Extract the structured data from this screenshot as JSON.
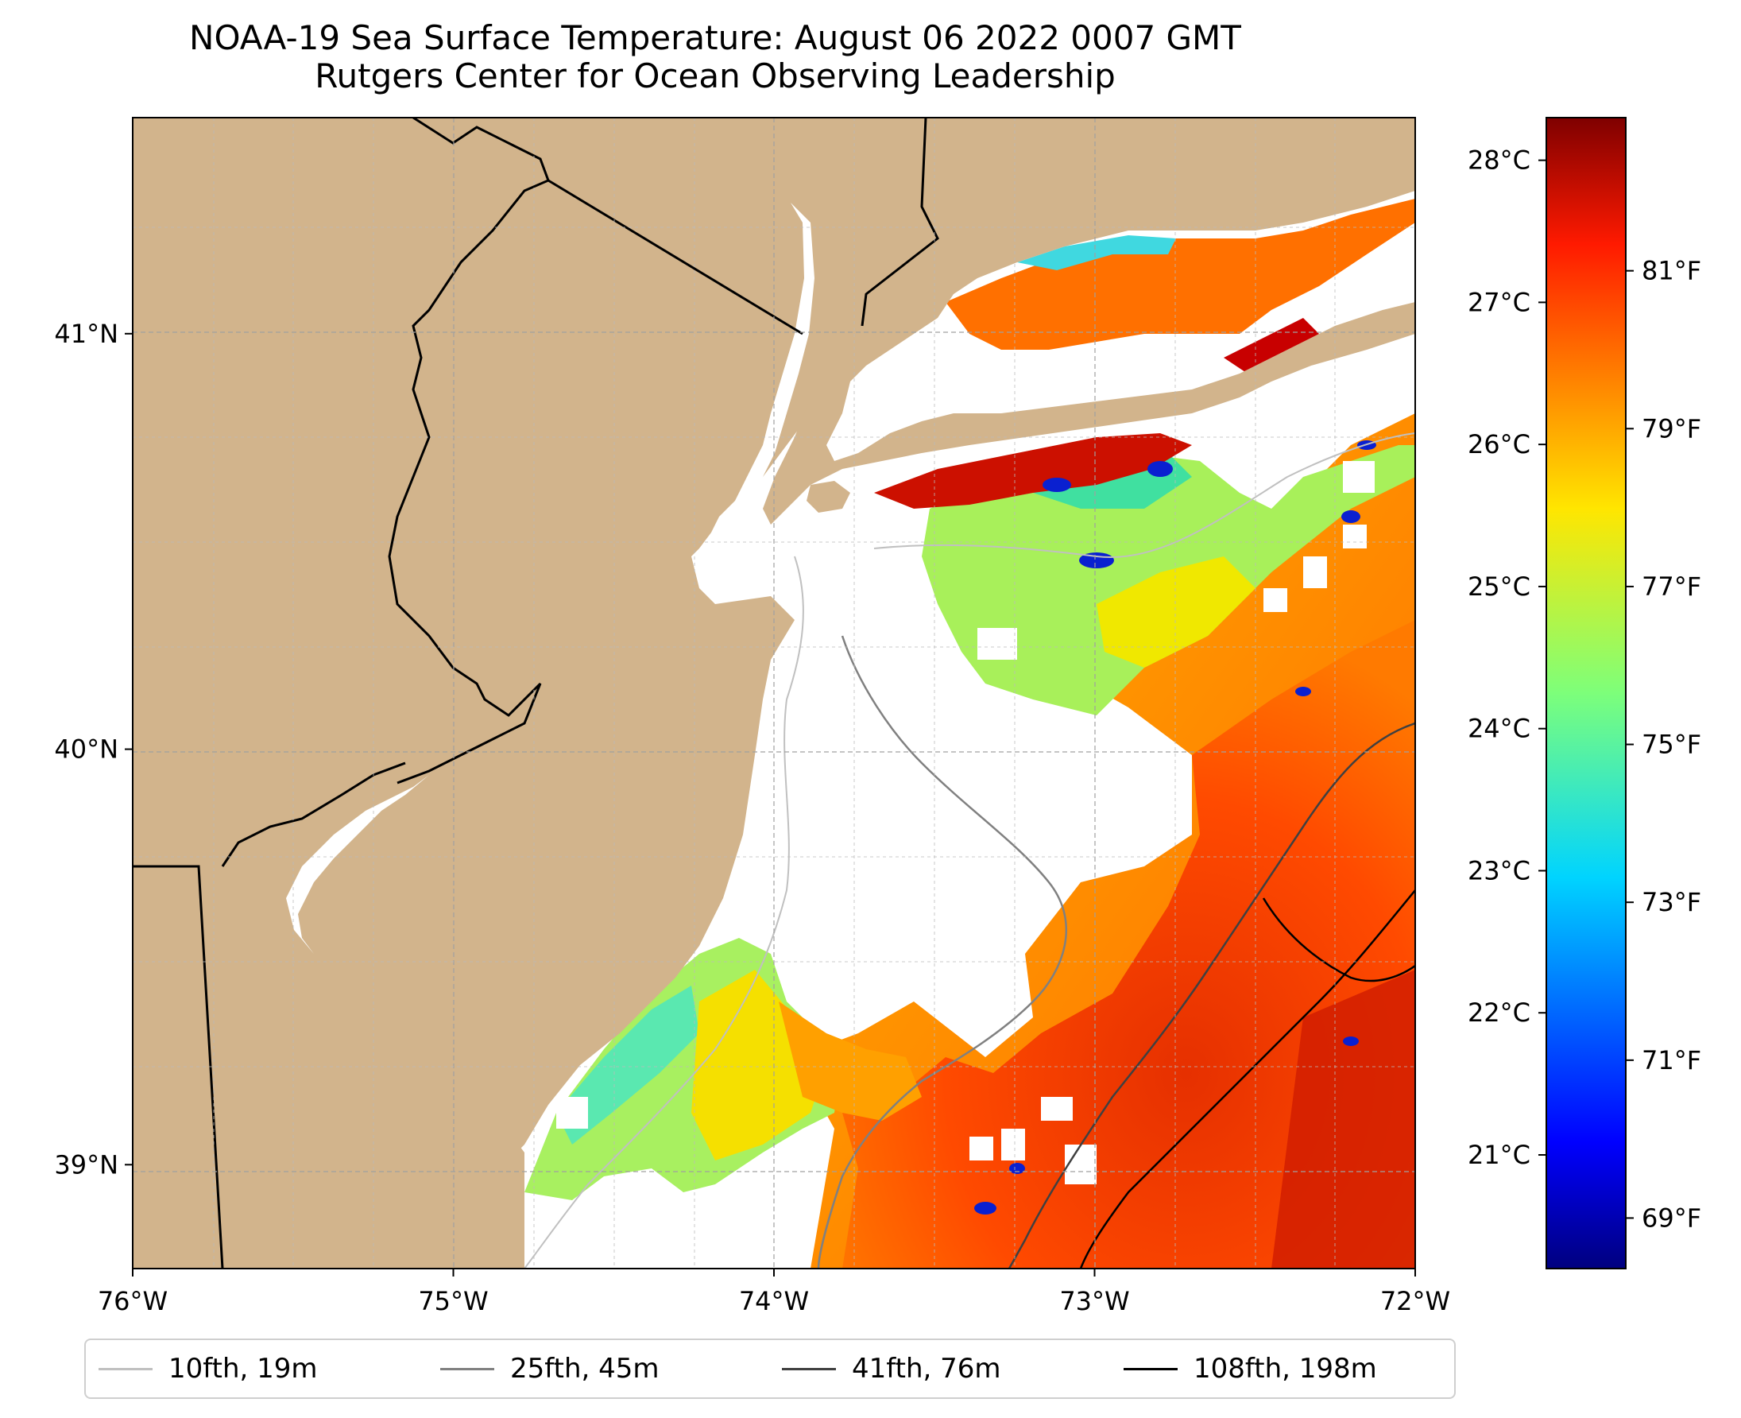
{
  "title_line1": "NOAA-19 Sea Surface Temperature: August 06 2022 0007 GMT",
  "title_line2": "Rutgers Center for Ocean Observing Leadership",
  "x_ticks": [
    {
      "value": -76,
      "label": "76°W"
    },
    {
      "value": -75,
      "label": "75°W"
    },
    {
      "value": -74,
      "label": "74°W"
    },
    {
      "value": -73,
      "label": "73°W"
    },
    {
      "value": -72,
      "label": "72°W"
    }
  ],
  "y_ticks": [
    {
      "value": 41,
      "label": "41°N"
    },
    {
      "value": 40,
      "label": "40°N"
    },
    {
      "value": 39,
      "label": "39°N"
    }
  ],
  "map_extent": {
    "lon_min": -76,
    "lon_max": -72,
    "lat_min": 38.75,
    "lat_max": 41.52
  },
  "colorbar": {
    "celsius": [
      {
        "value": 28,
        "label": "28°C"
      },
      {
        "value": 27,
        "label": "27°C"
      },
      {
        "value": 26,
        "label": "26°C"
      },
      {
        "value": 25,
        "label": "25°C"
      },
      {
        "value": 24,
        "label": "24°C"
      },
      {
        "value": 23,
        "label": "23°C"
      },
      {
        "value": 22,
        "label": "22°C"
      },
      {
        "value": 21,
        "label": "21°C"
      }
    ],
    "fahrenheit": [
      {
        "value": 81,
        "label": "81°F"
      },
      {
        "value": 79,
        "label": "79°F"
      },
      {
        "value": 77,
        "label": "77°F"
      },
      {
        "value": 75,
        "label": "75°F"
      },
      {
        "value": 73,
        "label": "73°F"
      },
      {
        "value": 71,
        "label": "71°F"
      },
      {
        "value": 69,
        "label": "69°F"
      }
    ],
    "range_c": [
      20.2,
      28.3
    ],
    "colormap": "jet"
  },
  "legend": [
    {
      "label": "10fth, 19m",
      "color": "#c0c0c0"
    },
    {
      "label": "25fth, 45m",
      "color": "#808080"
    },
    {
      "label": "41fth, 76m",
      "color": "#404040"
    },
    {
      "label": "108fth, 198m",
      "color": "#000000"
    }
  ],
  "colors": {
    "land": "#d2b48c",
    "ocean_nodata": "#ffffff",
    "grid": "#a0a0a0"
  }
}
